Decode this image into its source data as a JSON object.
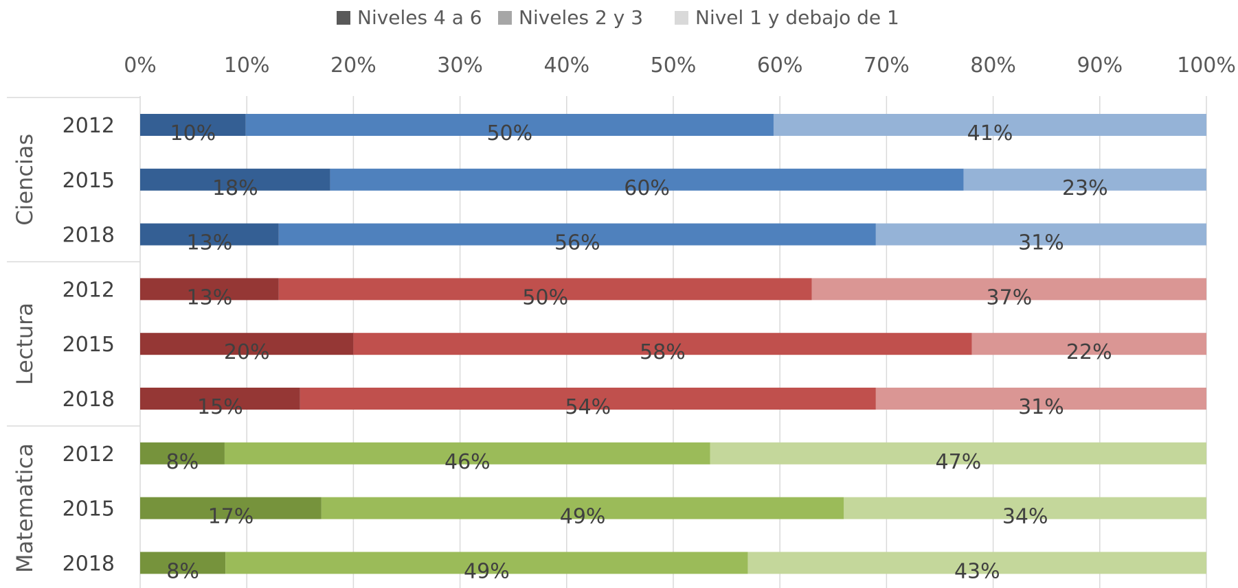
{
  "chart_data": {
    "type": "bar",
    "orientation": "horizontal",
    "stacked": true,
    "xlim": [
      0,
      100
    ],
    "xticks": [
      "0%",
      "10%",
      "20%",
      "30%",
      "40%",
      "50%",
      "60%",
      "70%",
      "80%",
      "90%",
      "100%"
    ],
    "grid": true,
    "legend_position": "top",
    "legend": [
      {
        "name": "Niveles  4 a 6",
        "color": "#595959"
      },
      {
        "name": "Niveles 2 y 3",
        "color": "#a6a6a6"
      },
      {
        "name": "Nivel 1 y debajo de 1",
        "color": "#d9d9d9"
      }
    ],
    "groups": [
      {
        "name": "Ciencias",
        "colors": [
          "#345f94",
          "#4f81bd",
          "#95b3d7"
        ],
        "rows": [
          {
            "year": "2012",
            "values": [
              10,
              50,
              41
            ],
            "labels": [
              "10%",
              "50%",
              "41%"
            ]
          },
          {
            "year": "2015",
            "values": [
              18,
              60,
              23
            ],
            "labels": [
              "18%",
              "60%",
              "23%"
            ]
          },
          {
            "year": "2018",
            "values": [
              13,
              56,
              31
            ],
            "labels": [
              "13%",
              "56%",
              "31%"
            ]
          }
        ]
      },
      {
        "name": "Lectura",
        "colors": [
          "#953735",
          "#c0504d",
          "#da9694"
        ],
        "rows": [
          {
            "year": "2012",
            "values": [
              13,
              50,
              37
            ],
            "labels": [
              "13%",
              "50%",
              "37%"
            ]
          },
          {
            "year": "2015",
            "values": [
              20,
              58,
              22
            ],
            "labels": [
              "20%",
              "58%",
              "22%"
            ]
          },
          {
            "year": "2018",
            "values": [
              15,
              54,
              31
            ],
            "labels": [
              "15%",
              "54%",
              "31%"
            ]
          }
        ]
      },
      {
        "name": "Matematica",
        "colors": [
          "#76933c",
          "#9bbb59",
          "#c4d79b"
        ],
        "rows": [
          {
            "year": "2012",
            "values": [
              8,
              46,
              47
            ],
            "labels": [
              "8%",
              "46%",
              "47%"
            ]
          },
          {
            "year": "2015",
            "values": [
              17,
              49,
              34
            ],
            "labels": [
              "17%",
              "49%",
              "34%"
            ]
          },
          {
            "year": "2018",
            "values": [
              8,
              49,
              43
            ],
            "labels": [
              "8%",
              "49%",
              "43%"
            ]
          }
        ]
      }
    ]
  }
}
